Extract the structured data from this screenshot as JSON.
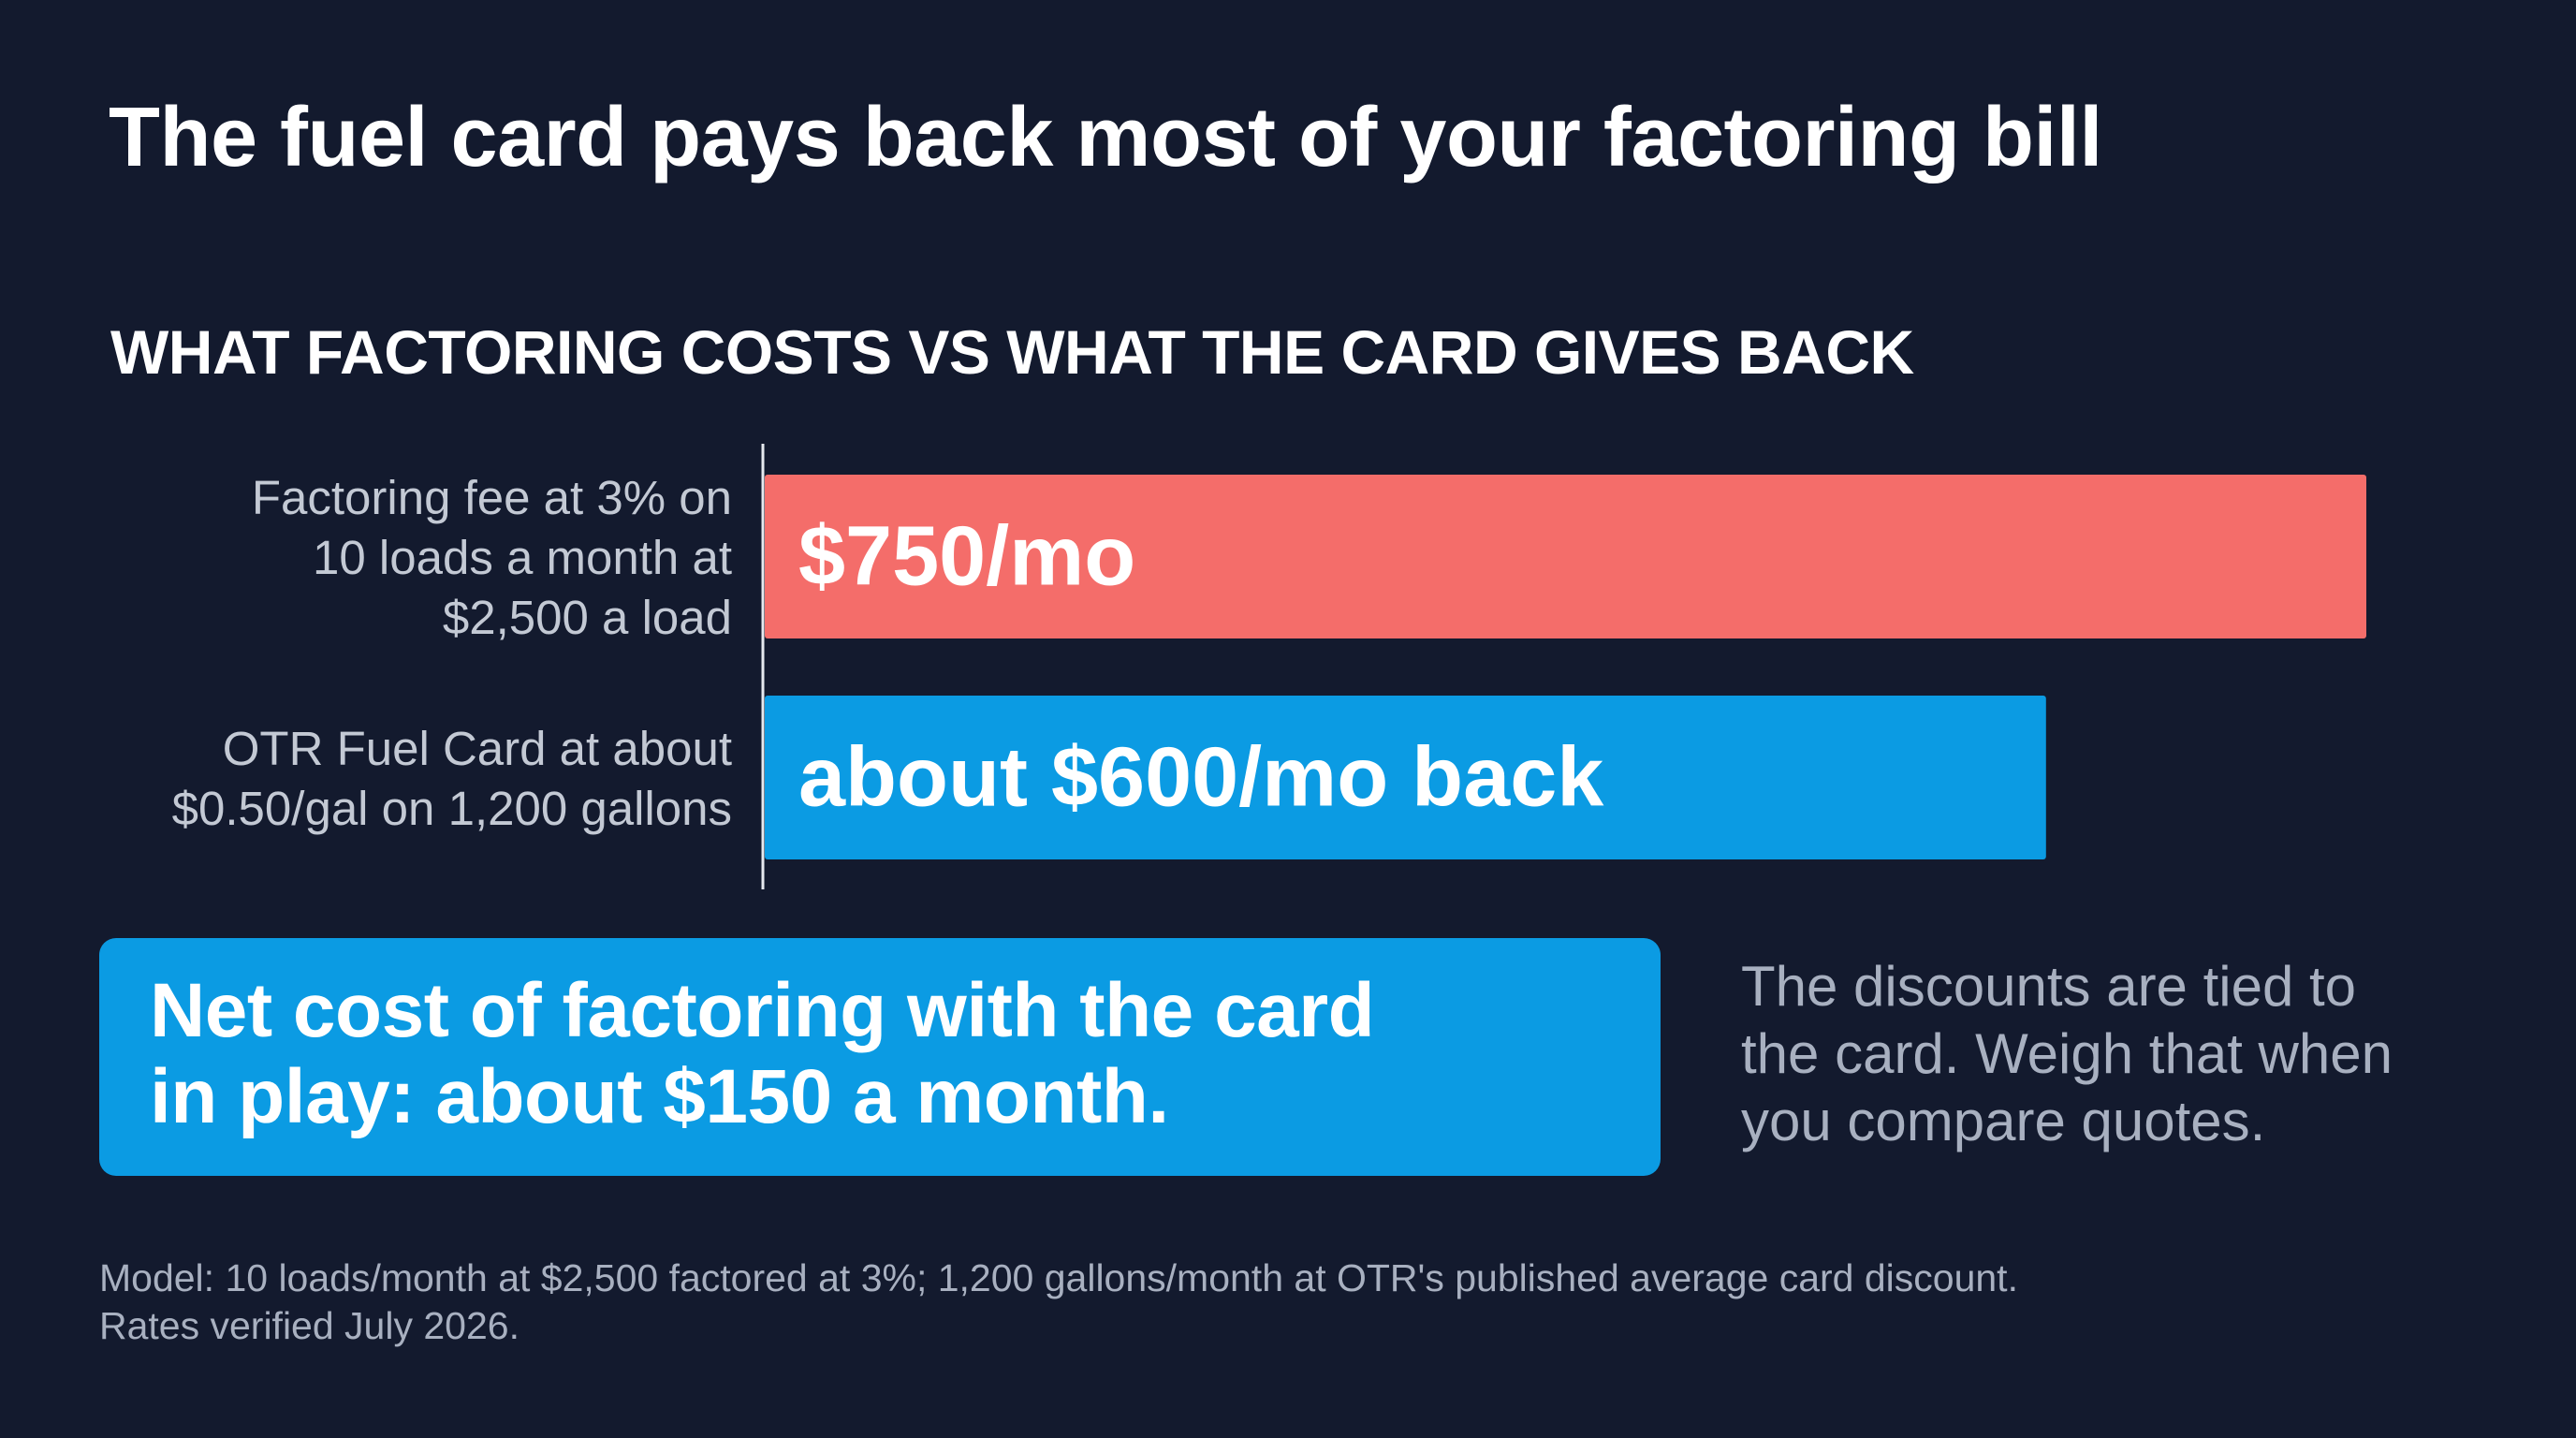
{
  "title": "The fuel card pays back most of your factoring bill",
  "subtitle": "WHAT FACTORING COSTS VS WHAT THE CARD GIVES BACK",
  "chart_data": {
    "type": "bar",
    "orientation": "horizontal",
    "categories": [
      "Factoring fee at 3% on\n10 loads a month at\n$2,500 a load",
      "OTR Fuel Card at about\n$0.50/gal on 1,200 gallons"
    ],
    "values": [
      750,
      600
    ],
    "bar_labels": [
      "$750/mo",
      "about $600/mo back"
    ],
    "colors": [
      "#f46d6a",
      "#0b9be3"
    ],
    "unit": "$/mo",
    "xlim": [
      0,
      750
    ],
    "grid": false,
    "legend": "none"
  },
  "callout": {
    "text": "Net cost of factoring with the card\nin play: about $150 a month."
  },
  "side_note": "The discounts are tied to\nthe card. Weigh that when\nyou compare quotes.",
  "footnote": "Model: 10 loads/month at $2,500 factored at 3%; 1,200 gallons/month at OTR's published average card discount.\nRates verified July 2026."
}
